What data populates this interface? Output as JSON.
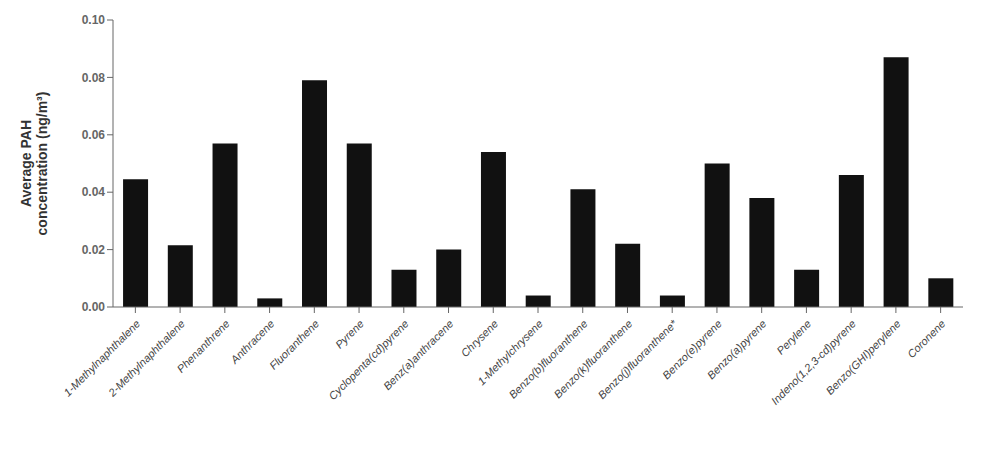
{
  "chart_data": {
    "type": "bar",
    "categories": [
      "1-Methylnaphthalene",
      "2-Methylnaphthalene",
      "Phenanthrene",
      "Anthracene",
      "Fluoranthene",
      "Pyrene",
      "Cyclopenta(cd)pyrene",
      "Benz(a)anthracene",
      "Chrysene",
      "1-Methylchrysene",
      "Benzo(b)fluoranthene",
      "Benzo(k)fluoranthene",
      "Benzo(j)fluoranthene*",
      "Benzo(e)pyrene",
      "Benzo(a)pyrene",
      "Perylene",
      "Indeno(1,2,3-cd)pyrene",
      "Benzo(GHI)perylene",
      "Coronene"
    ],
    "values": [
      0.0445,
      0.0215,
      0.057,
      0.003,
      0.079,
      0.057,
      0.013,
      0.02,
      0.054,
      0.004,
      0.041,
      0.022,
      0.004,
      0.05,
      0.038,
      0.013,
      0.046,
      0.087,
      0.01
    ],
    "color": "#111111",
    "ylabel": "Average PAH\nconcentration (ng/m³)",
    "ylim": [
      0,
      0.1
    ],
    "yticks": [
      {
        "value": 0.0,
        "label": "0.00"
      },
      0.02,
      0.04,
      0.06,
      0.08,
      {
        "value": 0.1,
        "label": "0.10"
      }
    ],
    "grid": false
  }
}
